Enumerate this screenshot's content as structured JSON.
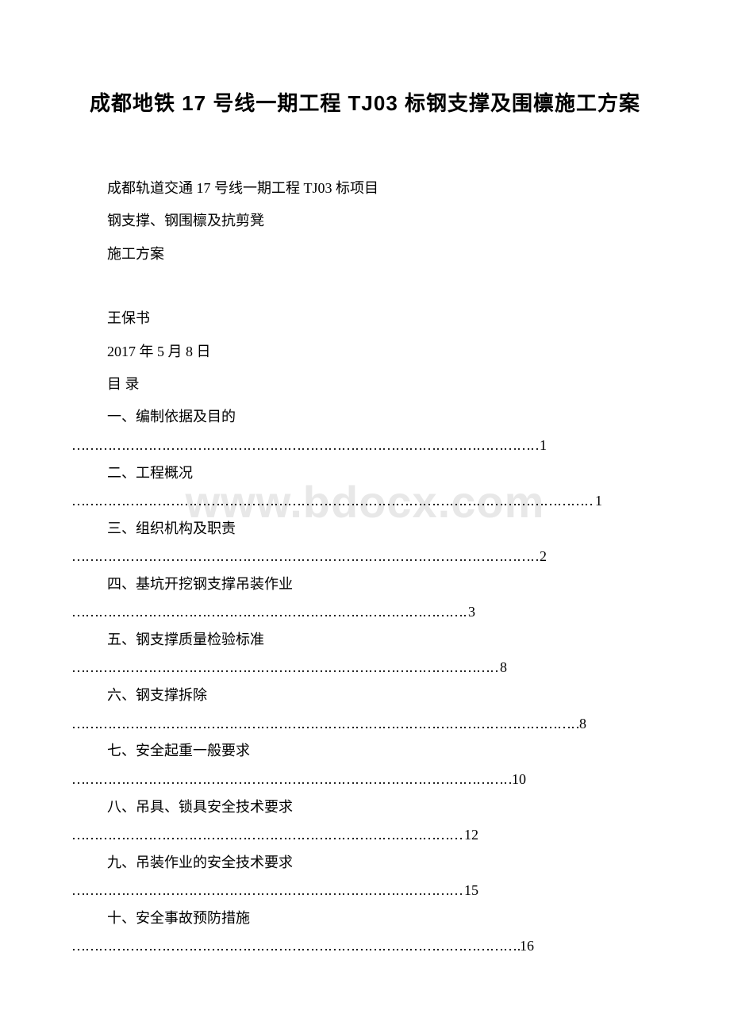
{
  "title": "成都地铁 17 号线一期工程 TJ03 标钢支撑及围檩施工方案",
  "body_lines": [
    "成都轨道交通 17 号线一期工程 TJ03 标项目",
    "钢支撑、钢围檩及抗剪凳",
    "施工方案"
  ],
  "author": "王保书",
  "date": "2017 年 5 月 8 日",
  "toc_heading": "目 录",
  "toc": [
    {
      "label": "一、编制依据及目的",
      "page": "1",
      "dots_width": 590
    },
    {
      "label": "二、工程概况",
      "page": "1",
      "dots_width": 660
    },
    {
      "label": "三、组织机构及职责",
      "page": "2",
      "dots_width": 590
    },
    {
      "label": "四、基坑开挖钢支撑吊装作业",
      "page": "3",
      "dots_width": 500
    },
    {
      "label": "五、钢支撑质量检验标准",
      "page": "8",
      "dots_width": 540
    },
    {
      "label": "六、钢支撑拆除",
      "page": "8",
      "dots_width": 640
    },
    {
      "label": "七、安全起重一般要求",
      "page": "10",
      "dots_width": 555
    },
    {
      "label": "八、吊具、锁具安全技术要求",
      "page": "12",
      "dots_width": 495
    },
    {
      "label": "九、吊装作业的安全技术要求",
      "page": "15",
      "dots_width": 495
    },
    {
      "label": "十、安全事故预防措施",
      "page": "16",
      "dots_width": 565
    }
  ],
  "watermark": "www.bdocx.com",
  "colors": {
    "text": "#000000",
    "background": "#ffffff",
    "watermark": "#e8e8e8"
  }
}
